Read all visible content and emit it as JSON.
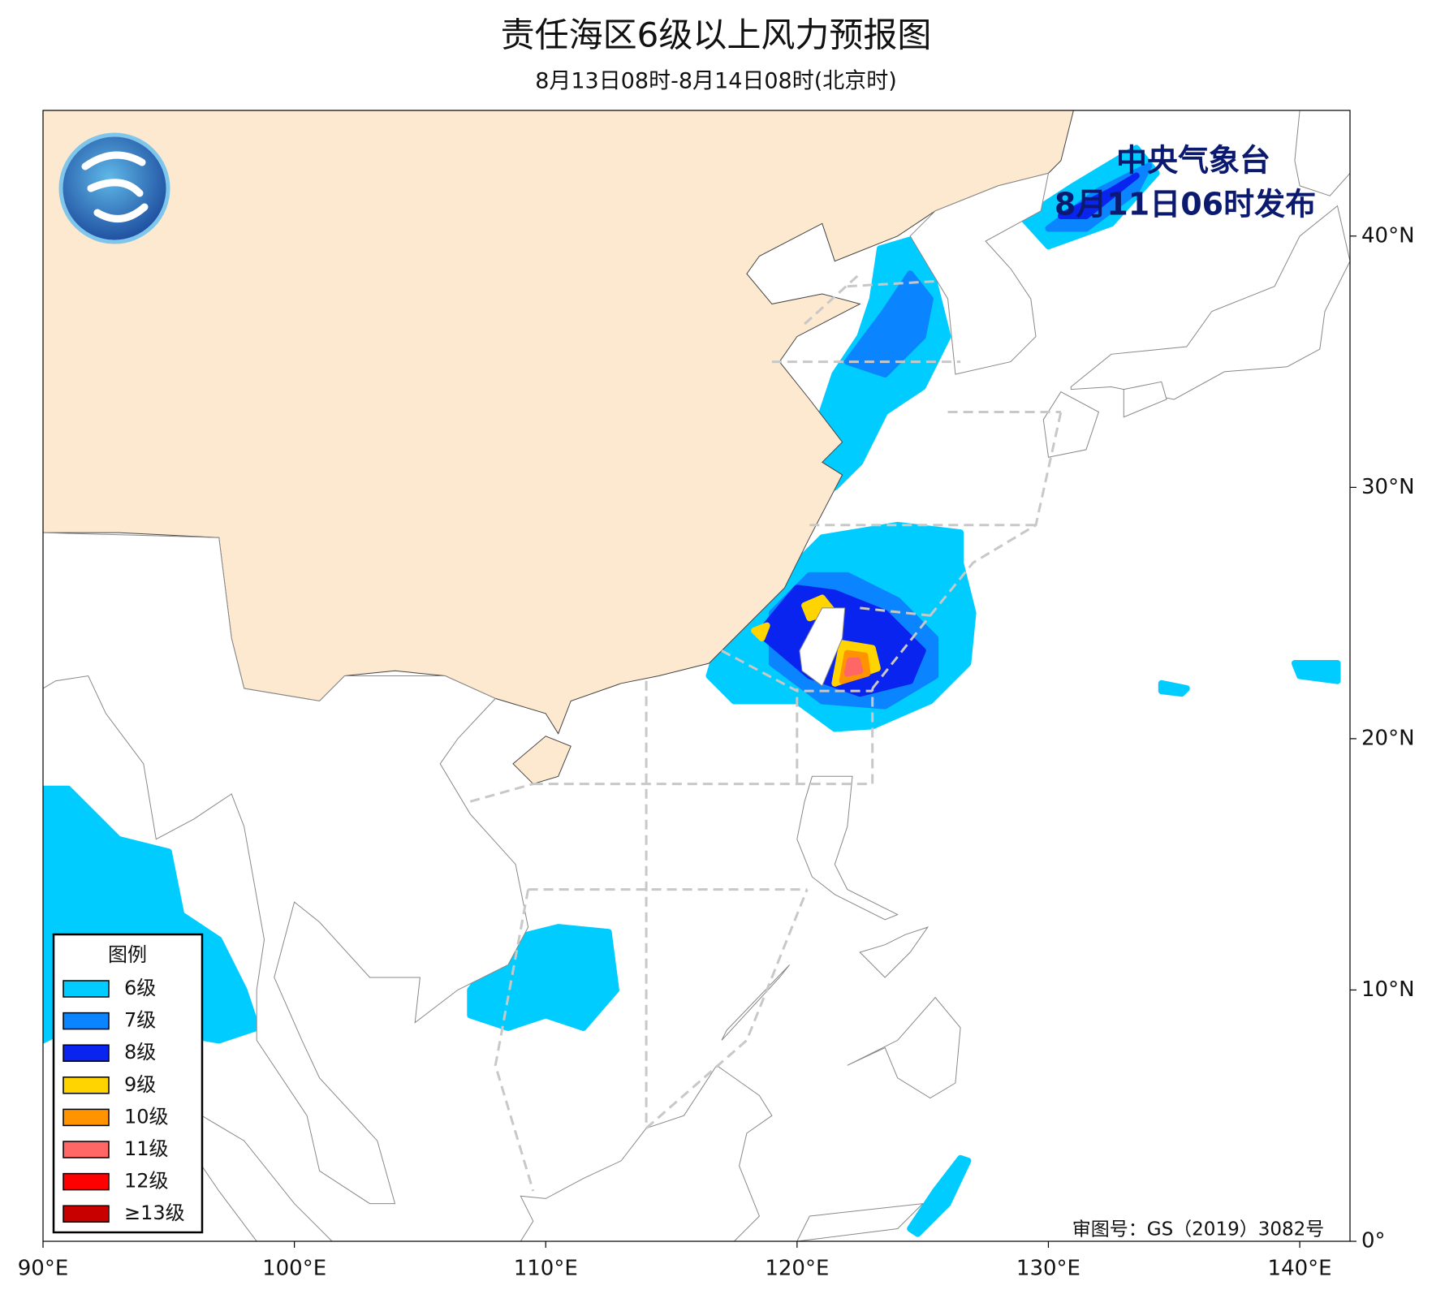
{
  "header": {
    "title": "责任海区6级以上风力预报图",
    "subtitle": "8月13日08时-8月14日08时(北京时)"
  },
  "publisher": {
    "name": "中央气象台",
    "date": "8月11日06时发布"
  },
  "legend": {
    "title": "图例",
    "items": [
      {
        "label": "6级",
        "color": "#00ccff"
      },
      {
        "label": "7级",
        "color": "#0a84ff"
      },
      {
        "label": "8级",
        "color": "#0a24f0"
      },
      {
        "label": "9级",
        "color": "#ffd400"
      },
      {
        "label": "10级",
        "color": "#ff9400"
      },
      {
        "label": "11级",
        "color": "#ff6666"
      },
      {
        "label": "12级",
        "color": "#ff0000"
      },
      {
        "label": "≥13级",
        "color": "#c80000"
      }
    ]
  },
  "map": {
    "xlim": [
      90,
      142
    ],
    "ylim": [
      0,
      45
    ],
    "xticks": [
      {
        "value": 90,
        "label": "90°E"
      },
      {
        "value": 100,
        "label": "100°E"
      },
      {
        "value": 110,
        "label": "110°E"
      },
      {
        "value": 120,
        "label": "120°E"
      },
      {
        "value": 130,
        "label": "130°E"
      },
      {
        "value": 140,
        "label": "140°E"
      }
    ],
    "yticks": [
      {
        "value": 0,
        "label": "0°"
      },
      {
        "value": 10,
        "label": "10°N"
      },
      {
        "value": 20,
        "label": "20°N"
      },
      {
        "value": 30,
        "label": "30°N"
      },
      {
        "value": 40,
        "label": "40°N"
      }
    ]
  },
  "review_number": "审图号：GS（2019）3082号"
}
